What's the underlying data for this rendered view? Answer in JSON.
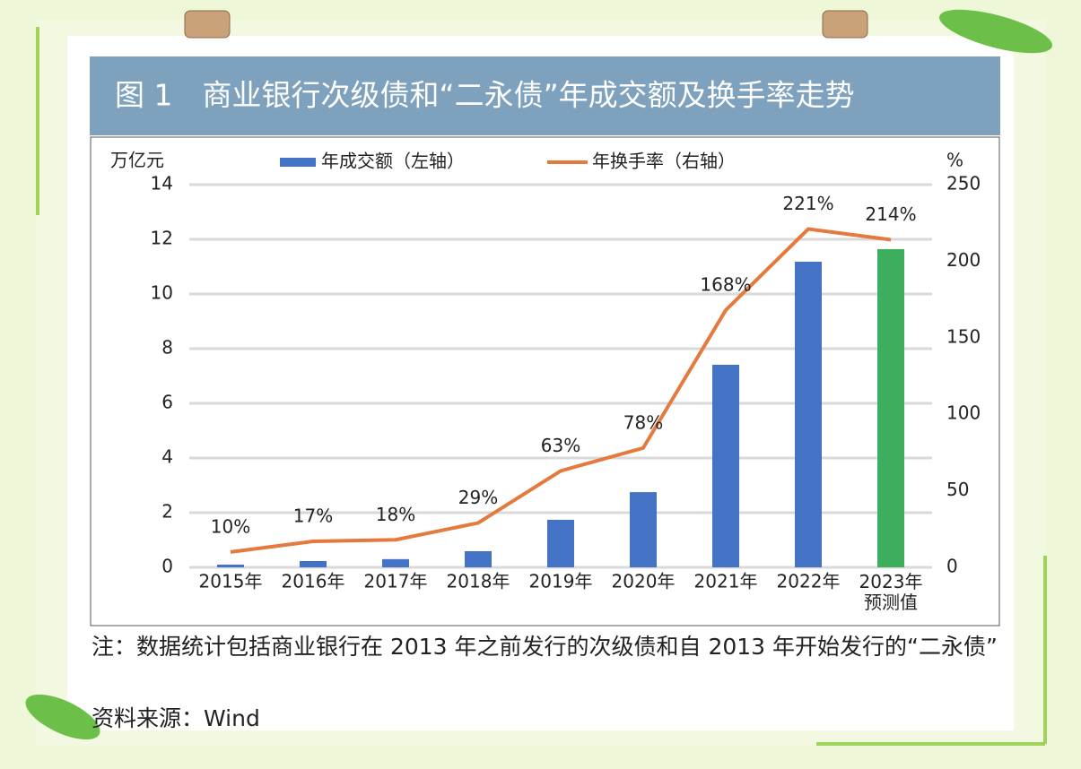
{
  "chart_data": {
    "type": "bar_line",
    "title": "图 1　商业银行次级债和“二永债”年成交额及换手率走势",
    "y_label": "万亿元",
    "y2_label": "%",
    "categories": [
      "2015年",
      "2016年",
      "2017年",
      "2018年",
      "2019年",
      "2020年",
      "2021年",
      "2022年",
      "2023年\n预测值"
    ],
    "series": [
      {
        "name": "年成交额（左轴）",
        "type": "bar",
        "color": "#4472c4",
        "colors": [
          "#4472c4",
          "#4472c4",
          "#4472c4",
          "#4472c4",
          "#4472c4",
          "#4472c4",
          "#4472c4",
          "#4472c4",
          "#3cae5e"
        ],
        "values": [
          0.1,
          0.23,
          0.3,
          0.59,
          1.74,
          2.75,
          7.41,
          11.18,
          11.64
        ]
      },
      {
        "name": "年换手率（右轴）",
        "type": "line",
        "axis": "y2",
        "color": "#e47a3d",
        "values": [
          10,
          17,
          18,
          29,
          63,
          78,
          168,
          221,
          214
        ],
        "value_labels": [
          "10%",
          "17%",
          "18%",
          "29%",
          "63%",
          "78%",
          "168%",
          "221%",
          "214%"
        ]
      }
    ],
    "ylim": [
      0,
      14
    ],
    "yticks": [
      0,
      2,
      4,
      6,
      8,
      10,
      12,
      14
    ],
    "y2lim": [
      0,
      250
    ],
    "y2ticks": [
      0,
      50,
      100,
      150,
      200,
      250
    ],
    "grid": true,
    "legend": "top"
  },
  "note": "注：数据统计包括商业银行在 2013 年之前发行的次级债和自 2013 年开始发行的“二永债”",
  "source": "资料来源：Wind"
}
